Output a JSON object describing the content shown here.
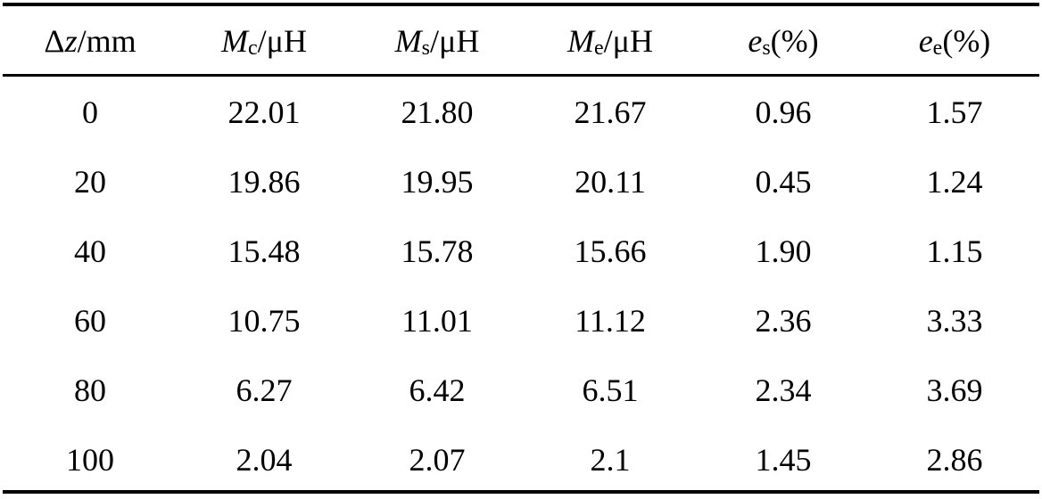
{
  "table": {
    "headers": [
      {
        "prefix": "Δ",
        "symbol": "z",
        "sub": "",
        "suffix": "/mm"
      },
      {
        "prefix": "",
        "symbol": "M",
        "sub": "c",
        "suffix": "/μH"
      },
      {
        "prefix": "",
        "symbol": "M",
        "sub": "s",
        "suffix": "/μH"
      },
      {
        "prefix": "",
        "symbol": "M",
        "sub": "e",
        "suffix": "/μH"
      },
      {
        "prefix": "",
        "symbol": "e",
        "sub": "s",
        "suffix": "(%)"
      },
      {
        "prefix": "",
        "symbol": "e",
        "sub": "e",
        "suffix": "(%)"
      }
    ],
    "rows": [
      [
        "0",
        "22.01",
        "21.80",
        "21.67",
        "0.96",
        "1.57"
      ],
      [
        "20",
        "19.86",
        "19.95",
        "20.11",
        "0.45",
        "1.24"
      ],
      [
        "40",
        "15.48",
        "15.78",
        "15.66",
        "1.90",
        "1.15"
      ],
      [
        "60",
        "10.75",
        "11.01",
        "11.12",
        "2.36",
        "3.33"
      ],
      [
        "80",
        "6.27",
        "6.42",
        "6.51",
        "2.34",
        "3.69"
      ],
      [
        "100",
        "2.04",
        "2.07",
        "2.1",
        "1.45",
        "2.86"
      ]
    ]
  }
}
